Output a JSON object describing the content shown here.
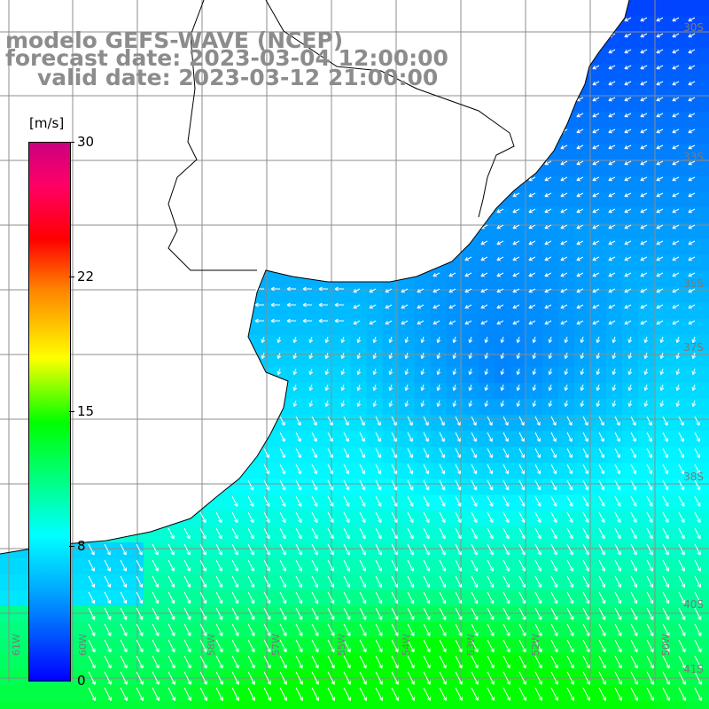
{
  "map": {
    "title_line1": "modelo GEFS-WAVE (NCEP)",
    "title_line2": "forecast date: 2023-03-04 12:00:00",
    "title_line3": "valid date: 2023-03-12 21:00:00",
    "variable": "wind speed and direction",
    "colors": {
      "land": "#ffffff",
      "coast": "#000000",
      "grid": "#8c8c8c",
      "title": "#8c8c8c",
      "arrow": "#ffffff"
    }
  },
  "colorbar": {
    "unit": "[m/s]",
    "ticks": [
      {
        "value": 30,
        "label": "30"
      },
      {
        "value": 22,
        "label": "22"
      },
      {
        "value": 15,
        "label": "15"
      },
      {
        "value": 8,
        "label": "8"
      },
      {
        "value": 0,
        "label": "0"
      }
    ]
  },
  "axes": {
    "lat_labels": [
      "30S",
      "33S",
      "35S",
      "37S",
      "38S",
      "40S",
      "41S"
    ],
    "lon_labels": [
      "61W",
      "60W",
      "58W",
      "57W",
      "55W",
      "54W",
      "53W",
      "52W",
      "50W"
    ]
  }
}
